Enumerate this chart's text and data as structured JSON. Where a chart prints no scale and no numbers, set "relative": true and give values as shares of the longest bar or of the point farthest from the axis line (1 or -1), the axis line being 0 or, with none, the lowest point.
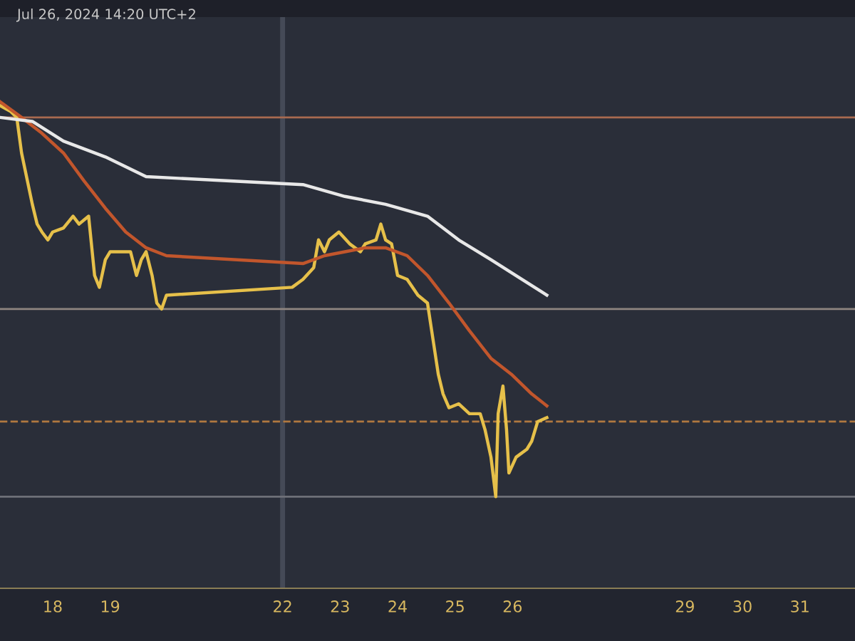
{
  "chart_data": {
    "type": "line",
    "relative": true,
    "tick_labels": "x",
    "grid": false,
    "legend": false,
    "line_style": "solid",
    "annotations": [
      "Jul 26, 2024 14:20 UTC+2"
    ],
    "xlim": [
      "2024-07-17T02:00",
      "2024-07-31T23:00"
    ],
    "xticks": [
      {
        "value": "2024-07-18",
        "label": "18"
      },
      {
        "value": "2024-07-19",
        "label": "19"
      },
      {
        "value": "2024-07-22",
        "label": "22"
      },
      {
        "value": "2024-07-23",
        "label": "23"
      },
      {
        "value": "2024-07-24",
        "label": "24"
      },
      {
        "value": "2024-07-25",
        "label": "25"
      },
      {
        "value": "2024-07-26",
        "label": "26"
      },
      {
        "value": "2024-07-29",
        "label": "29"
      },
      {
        "value": "2024-07-30",
        "label": "30"
      },
      {
        "value": "2024-07-31",
        "label": "31"
      }
    ],
    "ref_lines": [
      {
        "axis": "x",
        "value": "2024-07-22",
        "color": "#454a57",
        "line_style": "solid"
      },
      {
        "axis": "y",
        "value": 0.96,
        "color": "#a86a50",
        "line_style": "solid"
      },
      {
        "axis": "y",
        "value": 0.475,
        "color": "#8e8580",
        "line_style": "solid"
      },
      {
        "axis": "y",
        "value": 0.19,
        "color": "#b07840",
        "line_style": "dashed"
      },
      {
        "axis": "y",
        "value": 0,
        "color": "#6e7078",
        "line_style": "solid"
      }
    ],
    "series": [
      {
        "color": "#e6c04a",
        "x": [
          "2024-07-17T02:00",
          "2024-07-17T06:30",
          "2024-07-17T09:00",
          "2024-07-17T11:00",
          "2024-07-17T15:30",
          "2024-07-17T17:30",
          "2024-07-17T19:30",
          "2024-07-17T22:00",
          "2024-07-18T00:00",
          "2024-07-18T04:30",
          "2024-07-18T08:30",
          "2024-07-18T11:00",
          "2024-07-18T15:00",
          "2024-07-18T17:30",
          "2024-07-18T19:30",
          "2024-07-18T22:00",
          "2024-07-19T00:00",
          "2024-07-19T04:30",
          "2024-07-19T08:30",
          "2024-07-19T11:00",
          "2024-07-19T13:00",
          "2024-07-19T15:00",
          "2024-07-19T17:30",
          "2024-07-19T19:30",
          "2024-07-19T21:30",
          "2024-07-19T23:30",
          "2024-07-22T04:00",
          "2024-07-22T08:30",
          "2024-07-22T13:00",
          "2024-07-22T15:00",
          "2024-07-22T17:30",
          "2024-07-22T19:30",
          "2024-07-22T23:30",
          "2024-07-23T04:00",
          "2024-07-23T08:30",
          "2024-07-23T10:30",
          "2024-07-23T15:00",
          "2024-07-23T17:00",
          "2024-07-23T19:00",
          "2024-07-23T21:30",
          "2024-07-24T00:00",
          "2024-07-24T04:00",
          "2024-07-24T08:30",
          "2024-07-24T12:30",
          "2024-07-24T15:00",
          "2024-07-24T17:00",
          "2024-07-24T19:00",
          "2024-07-24T21:30",
          "2024-07-25T01:30",
          "2024-07-25T06:00",
          "2024-07-25T10:30",
          "2024-07-25T12:30",
          "2024-07-25T15:00",
          "2024-07-25T17:00",
          "2024-07-25T18:00",
          "2024-07-25T20:00",
          "2024-07-25T21:30",
          "2024-07-25T22:30",
          "2024-07-26T01:30",
          "2024-07-26T06:00",
          "2024-07-26T08:00",
          "2024-07-26T10:30",
          "2024-07-26T14:20"
        ],
        "values": [
          0.99,
          0.975,
          0.96,
          0.87,
          0.74,
          0.69,
          0.67,
          0.65,
          0.67,
          0.68,
          0.71,
          0.69,
          0.71,
          0.56,
          0.53,
          0.6,
          0.62,
          0.62,
          0.62,
          0.56,
          0.6,
          0.62,
          0.56,
          0.49,
          0.475,
          0.51,
          0.53,
          0.55,
          0.58,
          0.65,
          0.62,
          0.65,
          0.67,
          0.64,
          0.62,
          0.64,
          0.65,
          0.69,
          0.65,
          0.64,
          0.56,
          0.55,
          0.51,
          0.49,
          0.39,
          0.31,
          0.26,
          0.225,
          0.235,
          0.21,
          0.21,
          0.17,
          0.1,
          0,
          0.21,
          0.28,
          0.17,
          0.06,
          0.1,
          0.12,
          0.14,
          0.19,
          0.2
        ]
      },
      {
        "color": "#c2562c",
        "x": [
          "2024-07-17T02:00",
          "2024-07-17T11:00",
          "2024-07-17T19:30",
          "2024-07-18T04:30",
          "2024-07-18T13:00",
          "2024-07-18T22:00",
          "2024-07-19T06:30",
          "2024-07-19T15:00",
          "2024-07-19T23:30",
          "2024-07-22T08:30",
          "2024-07-22T17:30",
          "2024-07-23T02:00",
          "2024-07-23T10:30",
          "2024-07-23T19:00",
          "2024-07-24T04:00",
          "2024-07-24T12:30",
          "2024-07-24T21:30",
          "2024-07-25T06:00",
          "2024-07-25T15:00",
          "2024-07-25T23:30",
          "2024-07-26T08:00",
          "2024-07-26T14:20"
        ],
        "values": [
          1.0,
          0.96,
          0.92,
          0.87,
          0.8,
          0.73,
          0.67,
          0.63,
          0.61,
          0.59,
          0.61,
          0.62,
          0.63,
          0.63,
          0.61,
          0.56,
          0.49,
          0.42,
          0.35,
          0.31,
          0.26,
          0.23
        ]
      },
      {
        "color": "#e8e8e8",
        "x": [
          "2024-07-17T02:00",
          "2024-07-17T15:30",
          "2024-07-18T04:30",
          "2024-07-18T22:00",
          "2024-07-19T15:00",
          "2024-07-22T08:30",
          "2024-07-23T02:00",
          "2024-07-23T19:00",
          "2024-07-24T12:30",
          "2024-07-25T01:30",
          "2024-07-25T15:00",
          "2024-07-26T04:00",
          "2024-07-26T14:20"
        ],
        "values": [
          0.96,
          0.95,
          0.9,
          0.86,
          0.81,
          0.79,
          0.76,
          0.74,
          0.71,
          0.65,
          0.6,
          0.55,
          0.51
        ]
      }
    ]
  }
}
